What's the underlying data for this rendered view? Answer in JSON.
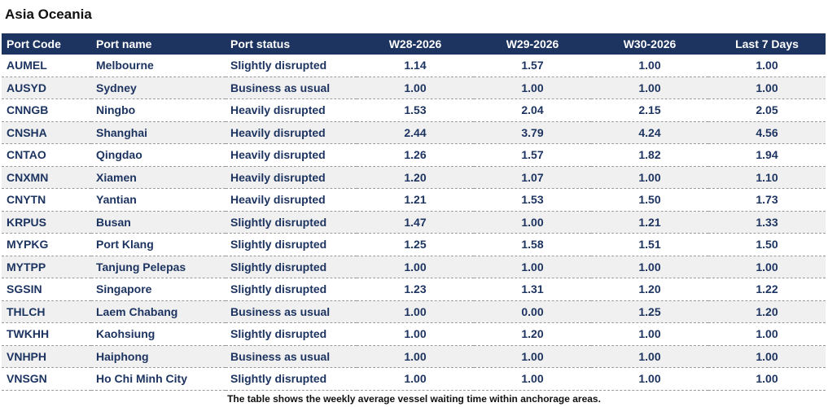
{
  "title": "Asia Oceania",
  "columns": {
    "code": "Port Code",
    "name": "Port name",
    "status": "Port status",
    "w28": "W28-2026",
    "w29": "W29-2026",
    "w30": "W30-2026",
    "last7": "Last 7 Days"
  },
  "rows": [
    {
      "code": "AUMEL",
      "name": "Melbourne",
      "status": "Slightly disrupted",
      "w28": "1.14",
      "w29": "1.57",
      "w30": "1.00",
      "last7": "1.00"
    },
    {
      "code": "AUSYD",
      "name": "Sydney",
      "status": "Business as usual",
      "w28": "1.00",
      "w29": "1.00",
      "w30": "1.00",
      "last7": "1.00"
    },
    {
      "code": "CNNGB",
      "name": "Ningbo",
      "status": "Heavily disrupted",
      "w28": "1.53",
      "w29": "2.04",
      "w30": "2.15",
      "last7": "2.05"
    },
    {
      "code": "CNSHA",
      "name": "Shanghai",
      "status": "Heavily disrupted",
      "w28": "2.44",
      "w29": "3.79",
      "w30": "4.24",
      "last7": "4.56"
    },
    {
      "code": "CNTAO",
      "name": "Qingdao",
      "status": "Heavily disrupted",
      "w28": "1.26",
      "w29": "1.57",
      "w30": "1.82",
      "last7": "1.94"
    },
    {
      "code": "CNXMN",
      "name": "Xiamen",
      "status": "Heavily disrupted",
      "w28": "1.20",
      "w29": "1.07",
      "w30": "1.00",
      "last7": "1.10"
    },
    {
      "code": "CNYTN",
      "name": "Yantian",
      "status": "Heavily disrupted",
      "w28": "1.21",
      "w29": "1.53",
      "w30": "1.50",
      "last7": "1.73"
    },
    {
      "code": "KRPUS",
      "name": "Busan",
      "status": "Slightly disrupted",
      "w28": "1.47",
      "w29": "1.00",
      "w30": "1.21",
      "last7": "1.33"
    },
    {
      "code": "MYPKG",
      "name": "Port Klang",
      "status": "Slightly disrupted",
      "w28": "1.25",
      "w29": "1.58",
      "w30": "1.51",
      "last7": "1.50"
    },
    {
      "code": "MYTPP",
      "name": "Tanjung Pelepas",
      "status": "Slightly disrupted",
      "w28": "1.00",
      "w29": "1.00",
      "w30": "1.00",
      "last7": "1.00"
    },
    {
      "code": "SGSIN",
      "name": "Singapore",
      "status": "Slightly disrupted",
      "w28": "1.23",
      "w29": "1.31",
      "w30": "1.20",
      "last7": "1.22"
    },
    {
      "code": "THLCH",
      "name": "Laem Chabang",
      "status": "Business as usual",
      "w28": "1.00",
      "w29": "0.00",
      "w30": "1.25",
      "last7": "1.20"
    },
    {
      "code": "TWKHH",
      "name": "Kaohsiung",
      "status": "Slightly disrupted",
      "w28": "1.00",
      "w29": "1.20",
      "w30": "1.00",
      "last7": "1.00"
    },
    {
      "code": "VNHPH",
      "name": "Haiphong",
      "status": "Business as usual",
      "w28": "1.00",
      "w29": "1.00",
      "w30": "1.00",
      "last7": "1.00"
    },
    {
      "code": "VNSGN",
      "name": "Ho Chi Minh City",
      "status": "Slightly disrupted",
      "w28": "1.00",
      "w29": "1.00",
      "w30": "1.00",
      "last7": "1.00"
    }
  ],
  "caption": "The table shows the weekly average vessel waiting time within anchorage areas.",
  "colors": {
    "header_bg": "#1d3461",
    "header_text": "#ffffff",
    "cell_text": "#1d3461",
    "row_shade": "#f0f0f0"
  }
}
